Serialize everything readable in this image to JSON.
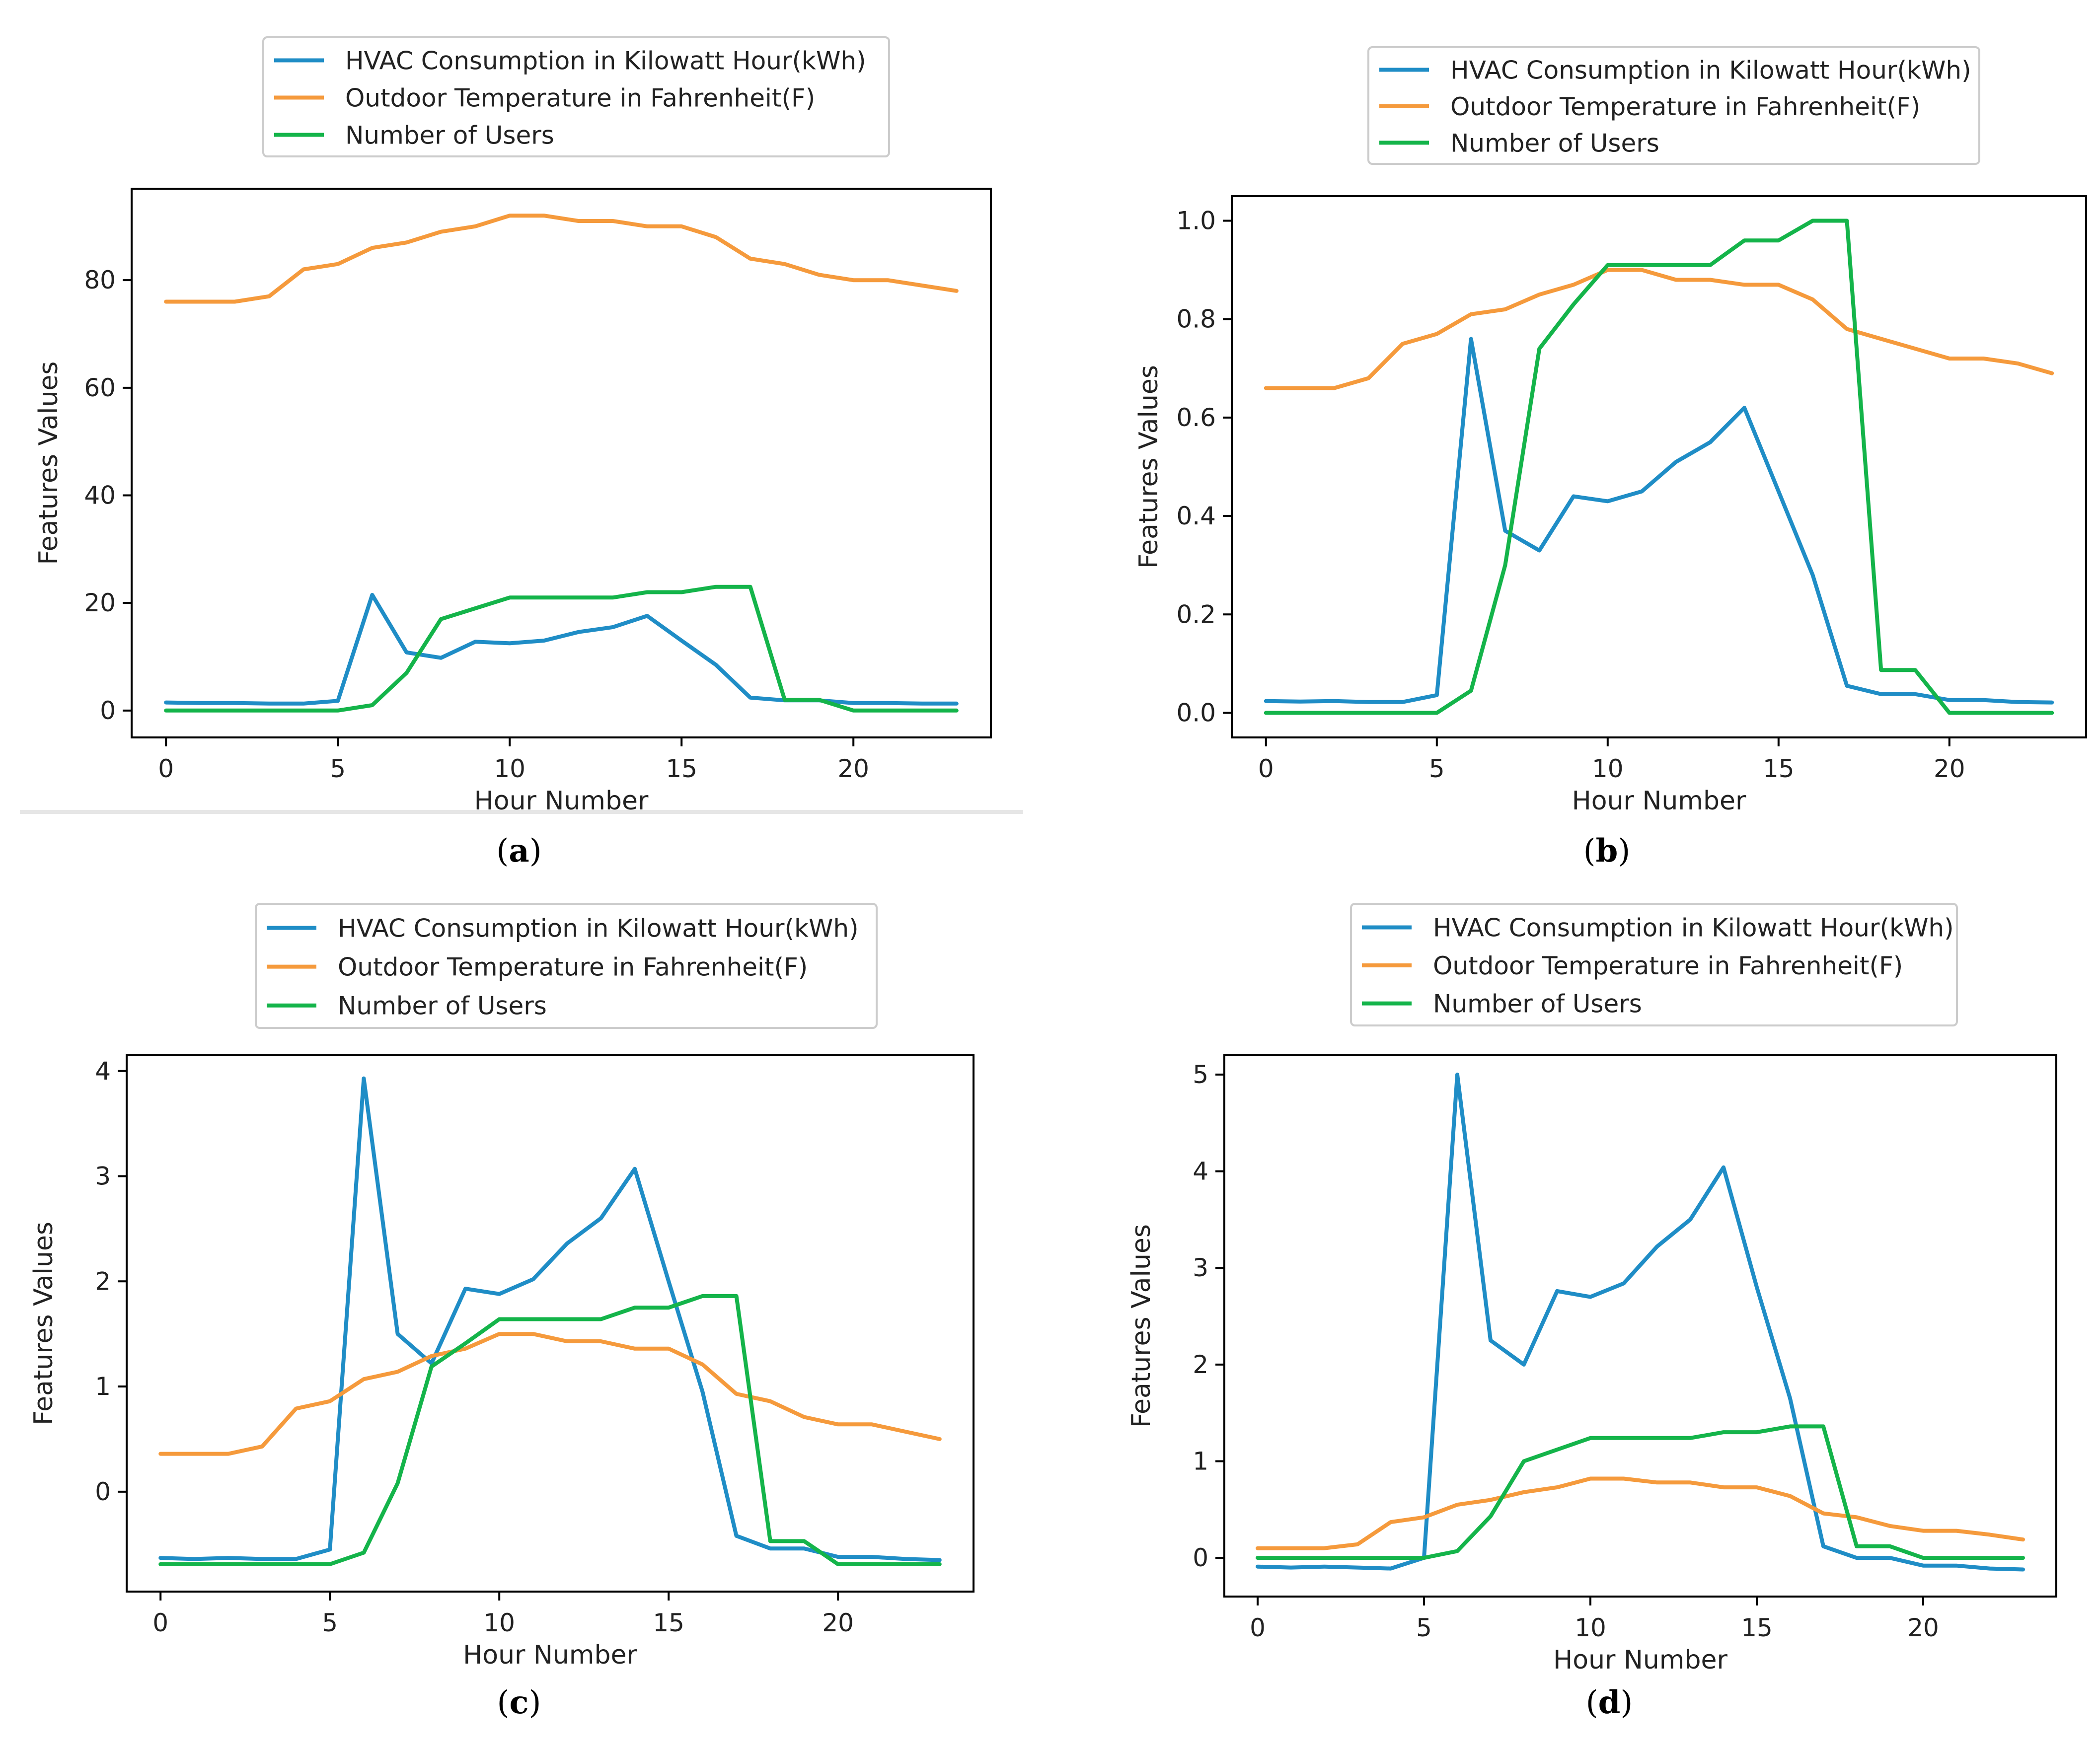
{
  "figure": {
    "panel_labels": [
      "a",
      "b",
      "c",
      "d"
    ]
  },
  "colors": {
    "hvac": "#1f8dc6",
    "temperature": "#f59a3c",
    "users": "#14b44a",
    "axis": "#000000",
    "legend_border": "#cccccc"
  },
  "chart_data": [
    {
      "type": "line",
      "label": "a",
      "xlabel": "Hour Number",
      "ylabel": "Features Values",
      "xlim": [
        -1,
        24
      ],
      "ylim": [
        -5,
        97
      ],
      "xticks": [
        0,
        5,
        10,
        15,
        20
      ],
      "yticks": [
        0,
        20,
        40,
        60,
        80
      ],
      "ytick_labels": [
        "0",
        "20",
        "40",
        "60",
        "80"
      ],
      "legend": [
        "HVAC Consumption in Kilowatt Hour(kWh)",
        "Outdoor Temperature in Fahrenheit(F)",
        "Number of Users"
      ],
      "x": [
        0,
        1,
        2,
        3,
        4,
        5,
        6,
        7,
        8,
        9,
        10,
        11,
        12,
        13,
        14,
        15,
        16,
        17,
        18,
        19,
        20,
        21,
        22,
        23
      ],
      "series": [
        {
          "name": "HVAC Consumption in Kilowatt Hour(kWh)",
          "values": [
            1.5,
            1.4,
            1.4,
            1.3,
            1.3,
            1.8,
            21.5,
            10.8,
            9.8,
            12.8,
            12.5,
            13.0,
            14.6,
            15.5,
            17.6,
            13.0,
            8.5,
            2.4,
            1.9,
            1.9,
            1.4,
            1.4,
            1.3,
            1.3
          ]
        },
        {
          "name": "Outdoor Temperature in Fahrenheit(F)",
          "values": [
            76,
            76,
            76,
            77,
            82,
            83,
            86,
            87,
            89,
            90,
            92,
            92,
            91,
            91,
            90,
            90,
            88,
            84,
            83,
            81,
            80,
            80,
            79,
            78
          ]
        },
        {
          "name": "Number of Users",
          "values": [
            0,
            0,
            0,
            0,
            0,
            0,
            1,
            7,
            17,
            19,
            21,
            21,
            21,
            21,
            22,
            22,
            23,
            23,
            2,
            2,
            0,
            0,
            0,
            0
          ]
        }
      ]
    },
    {
      "type": "line",
      "label": "b",
      "xlabel": "Hour Number",
      "ylabel": "Features Values",
      "xlim": [
        -1,
        24
      ],
      "ylim": [
        -0.05,
        1.05
      ],
      "xticks": [
        0,
        5,
        10,
        15,
        20
      ],
      "yticks": [
        0,
        0.2,
        0.4,
        0.6,
        0.8,
        1.0
      ],
      "ytick_labels": [
        "0.0",
        "0.2",
        "0.4",
        "0.6",
        "0.8",
        "1.0"
      ],
      "legend": [
        "HVAC Consumption in Kilowatt Hour(kWh)",
        "Outdoor Temperature in Fahrenheit(F)",
        "Number of Users"
      ],
      "x": [
        0,
        1,
        2,
        3,
        4,
        5,
        6,
        7,
        8,
        9,
        10,
        11,
        12,
        13,
        14,
        15,
        16,
        17,
        18,
        19,
        20,
        21,
        22,
        23
      ],
      "series": [
        {
          "name": "HVAC Consumption in Kilowatt Hour(kWh)",
          "values": [
            0.024,
            0.023,
            0.024,
            0.022,
            0.022,
            0.036,
            0.76,
            0.37,
            0.33,
            0.44,
            0.43,
            0.45,
            0.51,
            0.55,
            0.62,
            0.45,
            0.28,
            0.055,
            0.038,
            0.038,
            0.026,
            0.026,
            0.022,
            0.021
          ]
        },
        {
          "name": "Outdoor Temperature in Fahrenheit(F)",
          "values": [
            0.66,
            0.66,
            0.66,
            0.68,
            0.75,
            0.77,
            0.81,
            0.82,
            0.85,
            0.87,
            0.9,
            0.9,
            0.88,
            0.88,
            0.87,
            0.87,
            0.84,
            0.78,
            0.76,
            0.74,
            0.72,
            0.72,
            0.71,
            0.69
          ]
        },
        {
          "name": "Number of Users",
          "values": [
            0,
            0,
            0,
            0,
            0,
            0,
            0.045,
            0.3,
            0.74,
            0.83,
            0.91,
            0.91,
            0.91,
            0.91,
            0.96,
            0.96,
            1.0,
            1.0,
            0.087,
            0.087,
            0,
            0,
            0,
            0
          ]
        }
      ]
    },
    {
      "type": "line",
      "label": "c",
      "xlabel": "Hour Number",
      "ylabel": "Features Values",
      "xlim": [
        -1,
        24
      ],
      "ylim": [
        -0.95,
        4.15
      ],
      "xticks": [
        0,
        5,
        10,
        15,
        20
      ],
      "yticks": [
        0,
        1,
        2,
        3,
        4
      ],
      "ytick_labels": [
        "0",
        "1",
        "2",
        "3",
        "4"
      ],
      "legend": [
        "HVAC Consumption in Kilowatt Hour(kWh)",
        "Outdoor Temperature in Fahrenheit(F)",
        "Number of Users"
      ],
      "x": [
        0,
        1,
        2,
        3,
        4,
        5,
        6,
        7,
        8,
        9,
        10,
        11,
        12,
        13,
        14,
        15,
        16,
        17,
        18,
        19,
        20,
        21,
        22,
        23
      ],
      "series": [
        {
          "name": "HVAC Consumption in Kilowatt Hour(kWh)",
          "values": [
            -0.63,
            -0.64,
            -0.63,
            -0.64,
            -0.64,
            -0.55,
            3.93,
            1.5,
            1.22,
            1.93,
            1.88,
            2.02,
            2.36,
            2.6,
            3.07,
            2.0,
            0.95,
            -0.42,
            -0.54,
            -0.54,
            -0.62,
            -0.62,
            -0.64,
            -0.65
          ]
        },
        {
          "name": "Outdoor Temperature in Fahrenheit(F)",
          "values": [
            0.36,
            0.36,
            0.36,
            0.43,
            0.79,
            0.86,
            1.07,
            1.14,
            1.29,
            1.36,
            1.5,
            1.5,
            1.43,
            1.43,
            1.36,
            1.36,
            1.21,
            0.93,
            0.86,
            0.71,
            0.64,
            0.64,
            0.57,
            0.5
          ]
        },
        {
          "name": "Number of Users",
          "values": [
            -0.69,
            -0.69,
            -0.69,
            -0.69,
            -0.69,
            -0.69,
            -0.58,
            0.08,
            1.19,
            1.41,
            1.64,
            1.64,
            1.64,
            1.64,
            1.75,
            1.75,
            1.86,
            1.86,
            -0.47,
            -0.47,
            -0.69,
            -0.69,
            -0.69,
            -0.69
          ]
        }
      ]
    },
    {
      "type": "line",
      "label": "d",
      "xlabel": "Hour Number",
      "ylabel": "Features Values",
      "xlim": [
        -1,
        24
      ],
      "ylim": [
        -0.4,
        5.2
      ],
      "xticks": [
        0,
        5,
        10,
        15,
        20
      ],
      "yticks": [
        0,
        1,
        2,
        3,
        4,
        5
      ],
      "ytick_labels": [
        "0",
        "1",
        "2",
        "3",
        "4",
        "5"
      ],
      "legend": [
        "HVAC Consumption in Kilowatt Hour(kWh)",
        "Outdoor Temperature in Fahrenheit(F)",
        "Number of Users"
      ],
      "x": [
        0,
        1,
        2,
        3,
        4,
        5,
        6,
        7,
        8,
        9,
        10,
        11,
        12,
        13,
        14,
        15,
        16,
        17,
        18,
        19,
        20,
        21,
        22,
        23
      ],
      "series": [
        {
          "name": "HVAC Consumption in Kilowatt Hour(kWh)",
          "values": [
            -0.09,
            -0.1,
            -0.09,
            -0.1,
            -0.11,
            0.0,
            5.0,
            2.25,
            2.0,
            2.76,
            2.7,
            2.84,
            3.22,
            3.5,
            4.04,
            2.8,
            1.65,
            0.12,
            0.0,
            0.0,
            -0.08,
            -0.08,
            -0.11,
            -0.12
          ]
        },
        {
          "name": "Outdoor Temperature in Fahrenheit(F)",
          "values": [
            0.1,
            0.1,
            0.1,
            0.14,
            0.37,
            0.42,
            0.55,
            0.6,
            0.68,
            0.73,
            0.82,
            0.82,
            0.78,
            0.78,
            0.73,
            0.73,
            0.64,
            0.46,
            0.42,
            0.33,
            0.28,
            0.28,
            0.24,
            0.19
          ]
        },
        {
          "name": "Number of Users",
          "values": [
            0,
            0,
            0,
            0,
            0,
            0,
            0.07,
            0.43,
            1.0,
            1.12,
            1.24,
            1.24,
            1.24,
            1.24,
            1.3,
            1.3,
            1.36,
            1.36,
            0.12,
            0.12,
            0,
            0,
            0,
            0
          ]
        }
      ]
    }
  ]
}
